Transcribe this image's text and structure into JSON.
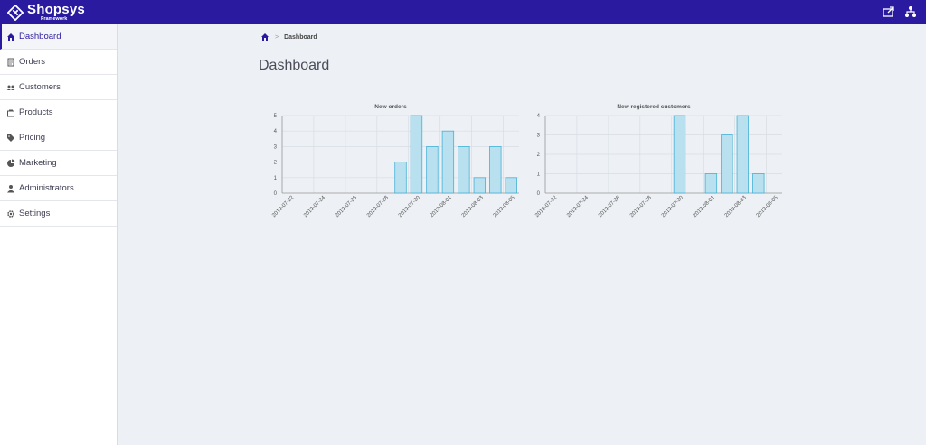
{
  "brand": {
    "name": "Shopsys",
    "subtitle": "Framework"
  },
  "colors": {
    "topbar": "#2a1aa0",
    "bar_fill": "#b9e0ee",
    "bar_stroke": "#45b1d6"
  },
  "sidebar": {
    "items": [
      {
        "label": "Dashboard",
        "icon": "home-icon",
        "active": true
      },
      {
        "label": "Orders",
        "icon": "orders-icon"
      },
      {
        "label": "Customers",
        "icon": "customers-icon"
      },
      {
        "label": "Products",
        "icon": "products-icon"
      },
      {
        "label": "Pricing",
        "icon": "tag-icon"
      },
      {
        "label": "Marketing",
        "icon": "pie-icon"
      },
      {
        "label": "Administrators",
        "icon": "admin-icon"
      },
      {
        "label": "Settings",
        "icon": "gear-icon"
      }
    ]
  },
  "breadcrumb": {
    "current": "Dashboard",
    "separator": ">"
  },
  "page": {
    "title": "Dashboard"
  },
  "chart_data": [
    {
      "type": "bar",
      "title": "New orders",
      "categories": [
        "2019-07-22",
        "2019-07-23",
        "2019-07-24",
        "2019-07-25",
        "2019-07-26",
        "2019-07-27",
        "2019-07-28",
        "2019-07-29",
        "2019-07-30",
        "2019-07-31",
        "2019-08-01",
        "2019-08-02",
        "2019-08-03",
        "2019-08-04",
        "2019-08-05"
      ],
      "values": [
        0,
        0,
        0,
        0,
        0,
        0,
        0,
        2,
        5,
        3,
        4,
        3,
        1,
        3,
        1
      ],
      "tick_labels": [
        "2019-07-22",
        "2019-07-24",
        "2019-07-26",
        "2019-07-28",
        "2019-07-30",
        "2019-08-01",
        "2019-08-03",
        "2019-08-05"
      ],
      "ylim": [
        0,
        5
      ],
      "yticks": [
        0,
        1,
        2,
        3,
        4,
        5
      ],
      "grid": true
    },
    {
      "type": "bar",
      "title": "New registered customers",
      "categories": [
        "2019-07-22",
        "2019-07-23",
        "2019-07-24",
        "2019-07-25",
        "2019-07-26",
        "2019-07-27",
        "2019-07-28",
        "2019-07-29",
        "2019-07-30",
        "2019-07-31",
        "2019-08-01",
        "2019-08-02",
        "2019-08-03",
        "2019-08-04",
        "2019-08-05"
      ],
      "values": [
        0,
        0,
        0,
        0,
        0,
        0,
        0,
        0,
        4,
        0,
        1,
        3,
        4,
        1,
        0
      ],
      "tick_labels": [
        "2019-07-22",
        "2019-07-24",
        "2019-07-26",
        "2019-07-28",
        "2019-07-30",
        "2019-08-01",
        "2019-08-03",
        "2019-08-05"
      ],
      "ylim": [
        0,
        4
      ],
      "yticks": [
        0,
        1,
        2,
        3,
        4
      ],
      "grid": true
    }
  ]
}
